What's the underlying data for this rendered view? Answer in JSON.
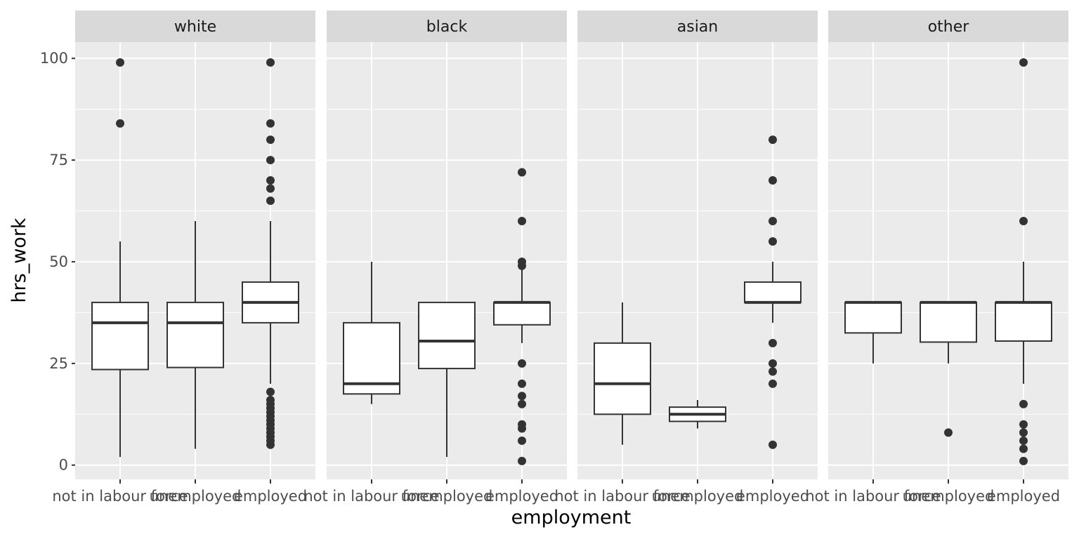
{
  "chart_data": {
    "type": "boxplot",
    "xlabel": "employment",
    "ylabel": "hrs_work",
    "ylim": [
      -3.5,
      104
    ],
    "y_ticks": [
      0,
      25,
      50,
      75,
      100
    ],
    "y_tick_labels": [
      "0",
      "25",
      "50",
      "75",
      "100"
    ],
    "categories": [
      "not in labour force",
      "unemployed",
      "employed"
    ],
    "grid": true,
    "facets": [
      {
        "label": "white",
        "boxes": [
          {
            "category": "not in labour force",
            "lower_whisker": 2,
            "q1": 23.5,
            "median": 35,
            "q3": 40,
            "upper_whisker": 55,
            "outliers": [
              84,
              99
            ]
          },
          {
            "category": "unemployed",
            "lower_whisker": 4,
            "q1": 24,
            "median": 35,
            "q3": 40,
            "upper_whisker": 60,
            "outliers": []
          },
          {
            "category": "employed",
            "lower_whisker": 20,
            "q1": 35,
            "median": 40,
            "q3": 45,
            "upper_whisker": 60,
            "outliers": [
              5,
              6,
              7,
              8,
              9,
              10,
              11,
              12,
              13,
              14,
              15,
              16,
              18,
              65,
              68,
              70,
              75,
              80,
              84,
              99
            ]
          }
        ]
      },
      {
        "label": "black",
        "boxes": [
          {
            "category": "not in labour force",
            "lower_whisker": 15,
            "q1": 17.5,
            "median": 20,
            "q3": 35,
            "upper_whisker": 50,
            "outliers": []
          },
          {
            "category": "unemployed",
            "lower_whisker": 2,
            "q1": 23.75,
            "median": 30.5,
            "q3": 40,
            "upper_whisker": 40,
            "outliers": []
          },
          {
            "category": "employed",
            "lower_whisker": 30,
            "q1": 34.5,
            "median": 40,
            "q3": 40,
            "upper_whisker": 48,
            "outliers": [
              1,
              6,
              9,
              10,
              15,
              17,
              20,
              25,
              49,
              50,
              60,
              72
            ]
          }
        ]
      },
      {
        "label": "asian",
        "boxes": [
          {
            "category": "not in labour force",
            "lower_whisker": 5,
            "q1": 12.5,
            "median": 20,
            "q3": 30,
            "upper_whisker": 40,
            "outliers": []
          },
          {
            "category": "unemployed",
            "lower_whisker": 9,
            "q1": 10.75,
            "median": 12.5,
            "q3": 14.25,
            "upper_whisker": 16,
            "outliers": []
          },
          {
            "category": "employed",
            "lower_whisker": 35,
            "q1": 40,
            "median": 40,
            "q3": 45,
            "upper_whisker": 50,
            "outliers": [
              5,
              20,
              23,
              25,
              30,
              55,
              60,
              70,
              80
            ]
          }
        ]
      },
      {
        "label": "other",
        "boxes": [
          {
            "category": "not in labour force",
            "lower_whisker": 25,
            "q1": 32.5,
            "median": 40,
            "q3": 40,
            "upper_whisker": 40,
            "outliers": []
          },
          {
            "category": "unemployed",
            "lower_whisker": 25,
            "q1": 30.25,
            "median": 40,
            "q3": 40,
            "upper_whisker": 40,
            "outliers": [
              8
            ]
          },
          {
            "category": "employed",
            "lower_whisker": 20,
            "q1": 30.5,
            "median": 40,
            "q3": 40,
            "upper_whisker": 50,
            "outliers": [
              1,
              4,
              6,
              8,
              10,
              15,
              60,
              99
            ]
          }
        ]
      }
    ]
  }
}
